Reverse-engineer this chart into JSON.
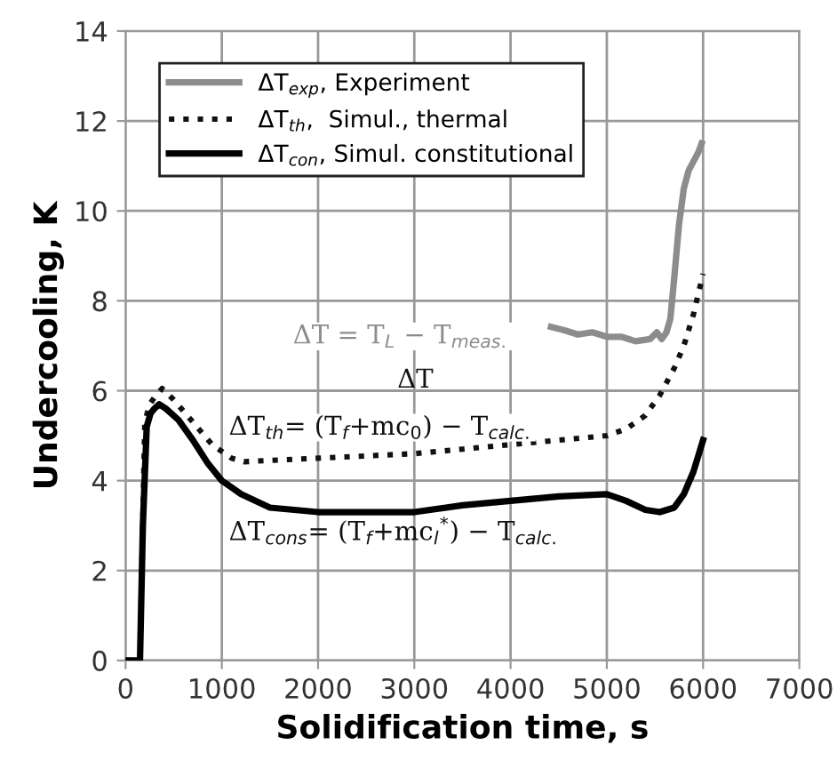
{
  "chart_data": {
    "type": "line",
    "xlabel": "Solidification time, s",
    "ylabel": "Undercooling, K",
    "xlim": [
      0,
      7000
    ],
    "xticks": [
      0,
      1000,
      2000,
      3000,
      4000,
      5000,
      6000,
      7000
    ],
    "ylim": [
      0,
      14
    ],
    "yticks": [
      0,
      2,
      4,
      6,
      8,
      10,
      12,
      14
    ],
    "grid": true,
    "legend": "top left",
    "marker": "none",
    "series": [
      {
        "name": "ΔT$_{exp}$, Experiment",
        "color": "#8c8c8c",
        "line_style": "solid",
        "x": [
          4420,
          4550,
          4700,
          4850,
          5000,
          5150,
          5300,
          5450,
          5520,
          5570,
          5620,
          5660,
          5700,
          5750,
          5800,
          5850,
          5900,
          5950,
          5985
        ],
        "values": [
          7.42,
          7.35,
          7.25,
          7.3,
          7.2,
          7.2,
          7.1,
          7.15,
          7.3,
          7.15,
          7.3,
          7.6,
          8.5,
          9.7,
          10.5,
          10.9,
          11.1,
          11.3,
          11.5
        ]
      },
      {
        "name": "ΔT$_{th}$,  Simul., thermal",
        "color": "#111111",
        "line_style": "dotted",
        "x": [
          0,
          150,
          200,
          250,
          300,
          380,
          500,
          700,
          900,
          1100,
          1230,
          1500,
          2000,
          2500,
          3000,
          3500,
          4000,
          4500,
          5000,
          5200,
          5400,
          5550,
          5700,
          5800,
          5900,
          6000
        ],
        "values": [
          0,
          0,
          5.3,
          5.7,
          5.85,
          6.05,
          5.8,
          5.3,
          4.8,
          4.5,
          4.42,
          4.45,
          4.5,
          4.55,
          4.6,
          4.7,
          4.8,
          4.9,
          5.0,
          5.15,
          5.45,
          5.9,
          6.5,
          7.0,
          7.7,
          8.6
        ]
      },
      {
        "name": "ΔT$_{con}$, Simul. constitutional",
        "color": "#000000",
        "line_style": "solid",
        "x": [
          0,
          150,
          180,
          220,
          260,
          300,
          350,
          420,
          550,
          700,
          850,
          1000,
          1200,
          1500,
          2000,
          2500,
          3000,
          3500,
          4000,
          4500,
          5000,
          5200,
          5400,
          5550,
          5700,
          5800,
          5900,
          6000
        ],
        "values": [
          0,
          0,
          3.0,
          5.2,
          5.5,
          5.6,
          5.7,
          5.6,
          5.35,
          4.9,
          4.4,
          4.0,
          3.7,
          3.4,
          3.3,
          3.3,
          3.3,
          3.45,
          3.55,
          3.65,
          3.7,
          3.55,
          3.35,
          3.3,
          3.4,
          3.7,
          4.2,
          4.9
        ]
      }
    ],
    "annotations": [
      "ΔT = T$_{L}$ − T$_{meas.}$",
      "ΔT",
      "ΔT$_{th}$= (T$_{f}$+mc$_{0}$) − T$_{calc.}$",
      "ΔT$_{cons}$= (T$_{f}$+mc$_{l}$$^{*}$) − T$_{calc.}$"
    ]
  }
}
